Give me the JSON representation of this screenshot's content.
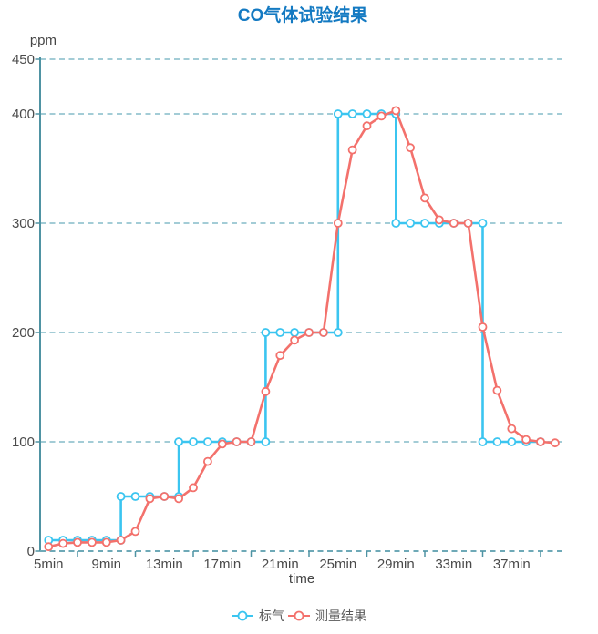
{
  "chart_data": {
    "type": "line",
    "title": "CO气体试验结果",
    "xlabel": "time",
    "ylabel": "ppm",
    "x_unit": "min",
    "x_tick_labels": [
      "5min",
      "9min",
      "13min",
      "17min",
      "21min",
      "25min",
      "29min",
      "33min",
      "37min"
    ],
    "y_ticks": [
      0,
      100,
      200,
      300,
      400,
      450
    ],
    "x_range": [
      5,
      41
    ],
    "y_range": [
      0,
      450
    ],
    "grid": "horizontal dashed lines",
    "legend_position": "bottom-center",
    "series": [
      {
        "name": "标气",
        "key": "standard-gas",
        "color": "#3bc5f0",
        "style": "step",
        "segments": [
          {
            "from": 5,
            "to": 10,
            "value": 10
          },
          {
            "from": 10,
            "to": 14,
            "value": 50
          },
          {
            "from": 14,
            "to": 20,
            "value": 100
          },
          {
            "from": 20,
            "to": 25,
            "value": 200
          },
          {
            "from": 25,
            "to": 29,
            "value": 400
          },
          {
            "from": 29,
            "to": 35,
            "value": 300
          },
          {
            "from": 35,
            "to": 39,
            "value": 100
          }
        ]
      },
      {
        "name": "测量结果",
        "key": "measurement-result",
        "color": "#f3716c",
        "style": "line",
        "x": [
          5,
          6,
          7,
          8,
          9,
          10,
          11,
          12,
          13,
          14,
          15,
          16,
          17,
          18,
          19,
          20,
          21,
          22,
          23,
          24,
          25,
          26,
          27,
          28,
          29,
          30,
          31,
          32,
          33,
          34,
          35,
          36,
          37,
          38,
          39,
          40
        ],
        "values": [
          4,
          7,
          8,
          8,
          8,
          10,
          18,
          48,
          50,
          48,
          58,
          82,
          98,
          100,
          100,
          146,
          179,
          193,
          200,
          200,
          300,
          367,
          389,
          398,
          403,
          369,
          323,
          303,
          300,
          300,
          205,
          147,
          112,
          102,
          100,
          99
        ]
      }
    ]
  },
  "colors": {
    "title": "#147ac2",
    "standard_gas": "#3bc5f0",
    "measurement": "#f3716c",
    "axis": "#4f93a3",
    "axis_dashed": "#6ea9b7",
    "grid": "#a3ccd6",
    "tick_text": "#4a4a4a",
    "legend_text": "#595959",
    "background": "#ffffff"
  }
}
